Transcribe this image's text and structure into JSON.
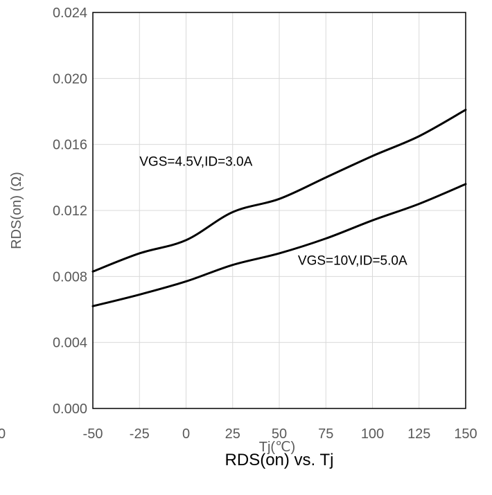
{
  "chart_data": {
    "type": "line",
    "title": "RDS(on) vs. Tj",
    "xlabel": "Tj(℃)",
    "ylabel": "RDS(on) (Ω)",
    "xlim": [
      -50,
      150
    ],
    "ylim": [
      0,
      0.024
    ],
    "x_ticks": [
      "-50",
      "-25",
      "0",
      "25",
      "50",
      "75",
      "100",
      "125",
      "150"
    ],
    "y_ticks": [
      "0.000",
      "0.004",
      "0.008",
      "0.012",
      "0.016",
      "0.020",
      "0.024"
    ],
    "stray_tick": "0",
    "grid": true,
    "x": [
      -50,
      -25,
      0,
      25,
      50,
      75,
      100,
      125,
      150
    ],
    "series": [
      {
        "name": "VGS=4.5V,ID=3.0A",
        "values": [
          0.0083,
          0.0094,
          0.0102,
          0.0119,
          0.0127,
          0.014,
          0.0153,
          0.0165,
          0.0181
        ],
        "annotation_at": [
          -25,
          0.0147
        ]
      },
      {
        "name": "VGS=10V,ID=5.0A",
        "values": [
          0.0062,
          0.0069,
          0.0077,
          0.0087,
          0.0094,
          0.0103,
          0.0114,
          0.0124,
          0.0136
        ],
        "annotation_at": [
          60,
          0.0087
        ]
      }
    ]
  }
}
